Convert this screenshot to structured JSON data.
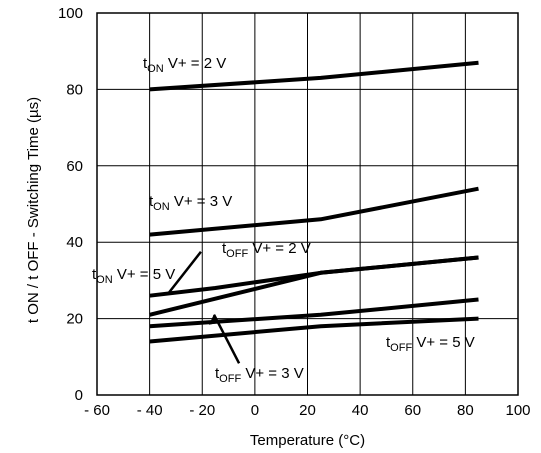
{
  "chart_data": {
    "type": "line",
    "title": "",
    "xlabel": "Temperature (°C)",
    "ylabel": "t ON / t OFF - Switching Time (µs)",
    "xlim": [
      -60,
      100
    ],
    "ylim": [
      0,
      100
    ],
    "x_ticks": [
      "- 60",
      "- 40",
      "- 20",
      "0",
      "20",
      "40",
      "60",
      "80",
      "100"
    ],
    "y_ticks": [
      "0",
      "20",
      "40",
      "60",
      "80",
      "100"
    ],
    "grid": true,
    "series": [
      {
        "x": [
          -40,
          25,
          85
        ],
        "y": [
          80,
          83,
          87
        ]
      },
      {
        "x": [
          -40,
          25,
          85
        ],
        "y": [
          42,
          46,
          54
        ]
      },
      {
        "x": [
          -40,
          -15,
          25,
          85
        ],
        "y": [
          26,
          28,
          32,
          36
        ]
      },
      {
        "x": [
          -40,
          25,
          85
        ],
        "y": [
          21,
          32,
          36
        ]
      },
      {
        "x": [
          -40,
          25,
          85
        ],
        "y": [
          18,
          21,
          25
        ]
      },
      {
        "x": [
          -40,
          25,
          85
        ],
        "y": [
          14,
          18,
          20
        ]
      }
    ],
    "annotations": [
      {
        "main": "t",
        "sub": "ON",
        "rest": " V+ = 2 V"
      },
      {
        "main": "t",
        "sub": "ON",
        "rest": " V+ = 3 V"
      },
      {
        "main": "t",
        "sub": "OFF",
        "rest": " V+ =  2 V"
      },
      {
        "main": "t",
        "sub": "ON",
        "rest": " V+ = 5 V"
      },
      {
        "main": "t",
        "sub": "OFF",
        "rest": " V+ = 5 V"
      },
      {
        "main": "t",
        "sub": "OFF",
        "rest": " V+ = 3 V"
      }
    ]
  }
}
